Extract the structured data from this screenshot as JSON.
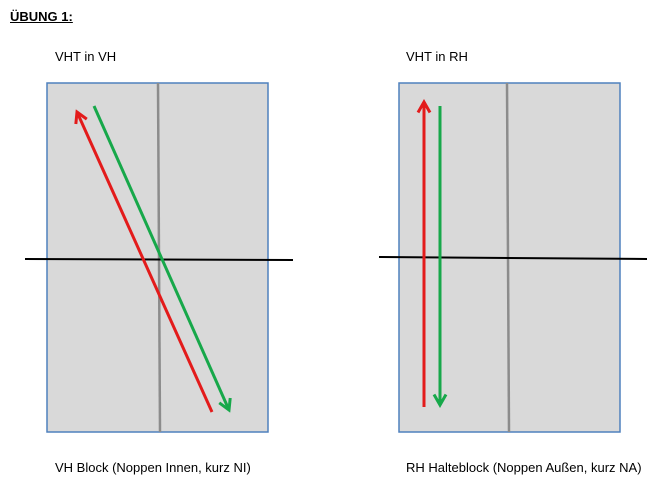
{
  "header": {
    "title": "ÜBUNG 1:"
  },
  "panels": [
    {
      "label": "VHT in VH",
      "caption": "VH Block (Noppen Innen, kurz NI)"
    },
    {
      "label": "VHT in RH",
      "caption": "RH Halteblock (Noppen Außen, kurz NA)"
    }
  ]
}
